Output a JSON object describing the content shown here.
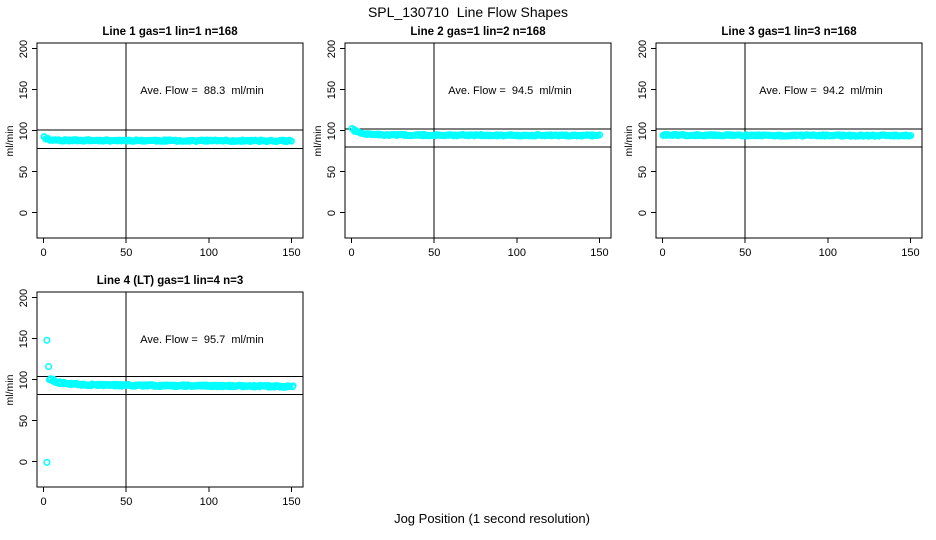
{
  "figure": {
    "title": "SPL_130710  Line Flow Shapes",
    "xlabel": "Jog Position (1 second resolution)",
    "background": "#FFFFFF",
    "foreground": "#000000",
    "point_color": "#00FFFF"
  },
  "chart_data": [
    {
      "type": "scatter",
      "title": "Line 1 gas=1 lin=1 n=168",
      "n": 168,
      "avg_flow": 88.3,
      "avg_flow_label": "Ave. Flow =  88.3  ml/min",
      "ylabel": "ml/min",
      "xticks": [
        0,
        50,
        100,
        150
      ],
      "yticks": [
        0,
        50,
        100,
        150,
        200
      ],
      "xlim": [
        -4,
        157
      ],
      "ylim": [
        -31,
        207
      ],
      "vline_x": 50,
      "hlines": [
        101,
        78.5
      ],
      "marker": "open-circle",
      "band_profile": [
        [
          0.5,
          93
        ],
        [
          1.5,
          90.5
        ],
        [
          4,
          88.8
        ],
        [
          12,
          88.2
        ],
        [
          80,
          87.8
        ],
        [
          150,
          87.5
        ]
      ],
      "band_noise": 0.9,
      "x_jitter": 0.4,
      "series_count": 1,
      "outliers": [],
      "seed": 11
    },
    {
      "type": "scatter",
      "title": "Line 2 gas=1 lin=2 n=168",
      "n": 168,
      "avg_flow": 94.5,
      "avg_flow_label": "Ave. Flow =  94.5  ml/min",
      "ylabel": "ml/min",
      "xticks": [
        0,
        50,
        100,
        150
      ],
      "yticks": [
        0,
        50,
        100,
        150,
        200
      ],
      "xlim": [
        -4,
        157
      ],
      "ylim": [
        -31,
        207
      ],
      "vline_x": 50,
      "hlines": [
        102,
        80
      ],
      "marker": "open-circle",
      "band_profile": [
        [
          0.5,
          103
        ],
        [
          1.5,
          101
        ],
        [
          3,
          98.5
        ],
        [
          6,
          96.3
        ],
        [
          12,
          95.2
        ],
        [
          30,
          94.6
        ],
        [
          150,
          94.1
        ]
      ],
      "band_noise": 0.8,
      "x_jitter": 0.4,
      "series_count": 1,
      "outliers": [],
      "seed": 22
    },
    {
      "type": "scatter",
      "title": "Line 3 gas=1 lin=3 n=168",
      "n": 168,
      "avg_flow": 94.2,
      "avg_flow_label": "Ave. Flow =  94.2  ml/min",
      "ylabel": "ml/min",
      "xticks": [
        0,
        50,
        100,
        150
      ],
      "yticks": [
        0,
        50,
        100,
        150,
        200
      ],
      "xlim": [
        -4,
        157
      ],
      "ylim": [
        -31,
        207
      ],
      "vline_x": 50,
      "hlines": [
        102,
        80
      ],
      "marker": "open-circle",
      "band_profile": [
        [
          0.5,
          94.6
        ],
        [
          60,
          94.2
        ],
        [
          150,
          93.9
        ]
      ],
      "band_noise": 0.85,
      "x_jitter": 0.4,
      "series_count": 1,
      "outliers": [],
      "seed": 33
    },
    {
      "type": "scatter",
      "title": "Line 4 (LT) gas=1 lin=4 n=3",
      "n": 3,
      "avg_flow": 95.7,
      "avg_flow_label": "Ave. Flow =  95.7  ml/min",
      "ylabel": "ml/min",
      "xticks": [
        0,
        50,
        100,
        150
      ],
      "yticks": [
        0,
        50,
        100,
        150,
        200
      ],
      "xlim": [
        -4,
        157
      ],
      "ylim": [
        -31,
        207
      ],
      "vline_x": 50,
      "hlines": [
        104,
        82
      ],
      "marker": "open-circle",
      "band_profile": [
        [
          4,
          100.5
        ],
        [
          7,
          97.5
        ],
        [
          12,
          95.8
        ],
        [
          25,
          93.8
        ],
        [
          60,
          92.8
        ],
        [
          110,
          92.3
        ],
        [
          150,
          91.8
        ]
      ],
      "band_noise": 1.3,
      "x_jitter": 1.2,
      "series_count": 3,
      "points_per_series": 147,
      "outliers": [
        [
          2,
          148
        ],
        [
          3,
          116
        ],
        [
          2,
          -1
        ]
      ],
      "seed": 44
    }
  ]
}
